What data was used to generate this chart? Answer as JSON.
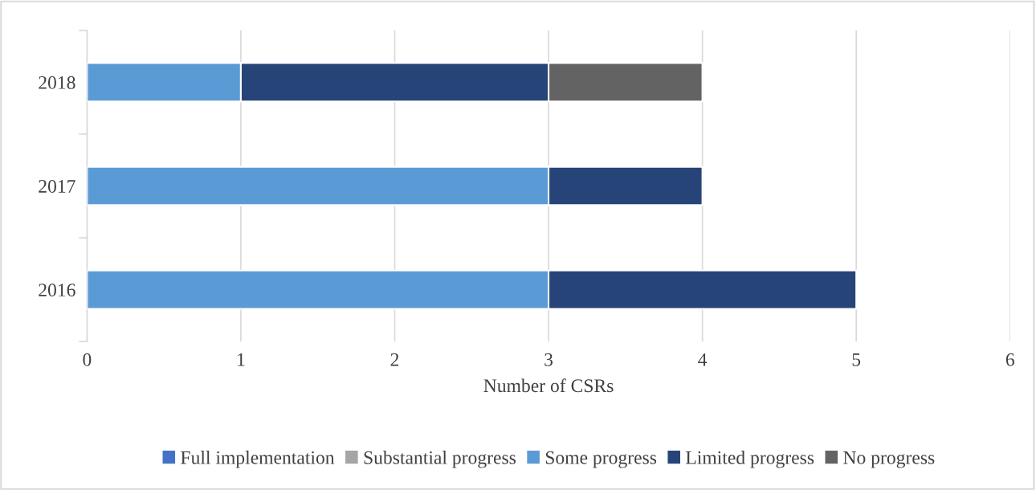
{
  "chart_data": {
    "type": "bar",
    "orientation": "horizontal",
    "stacked": true,
    "xlabel": "Number of CSRs",
    "categories": [
      "2018",
      "2017",
      "2016"
    ],
    "series": [
      {
        "name": "Full implementation",
        "color": "#4472c4",
        "values": [
          0,
          0,
          0
        ]
      },
      {
        "name": "Substantial progress",
        "color": "#a5a5a5",
        "values": [
          0,
          0,
          0
        ]
      },
      {
        "name": "Some progress",
        "color": "#5b9bd5",
        "values": [
          1,
          3,
          3
        ]
      },
      {
        "name": "Limited progress",
        "color": "#264478",
        "values": [
          2,
          1,
          2
        ]
      },
      {
        "name": "No progress",
        "color": "#636363",
        "values": [
          1,
          0,
          0
        ]
      }
    ],
    "xlim": [
      0,
      6
    ],
    "xticks": [
      0,
      1,
      2,
      3,
      4,
      5,
      6
    ],
    "grid": "x",
    "legend": "bottom"
  }
}
